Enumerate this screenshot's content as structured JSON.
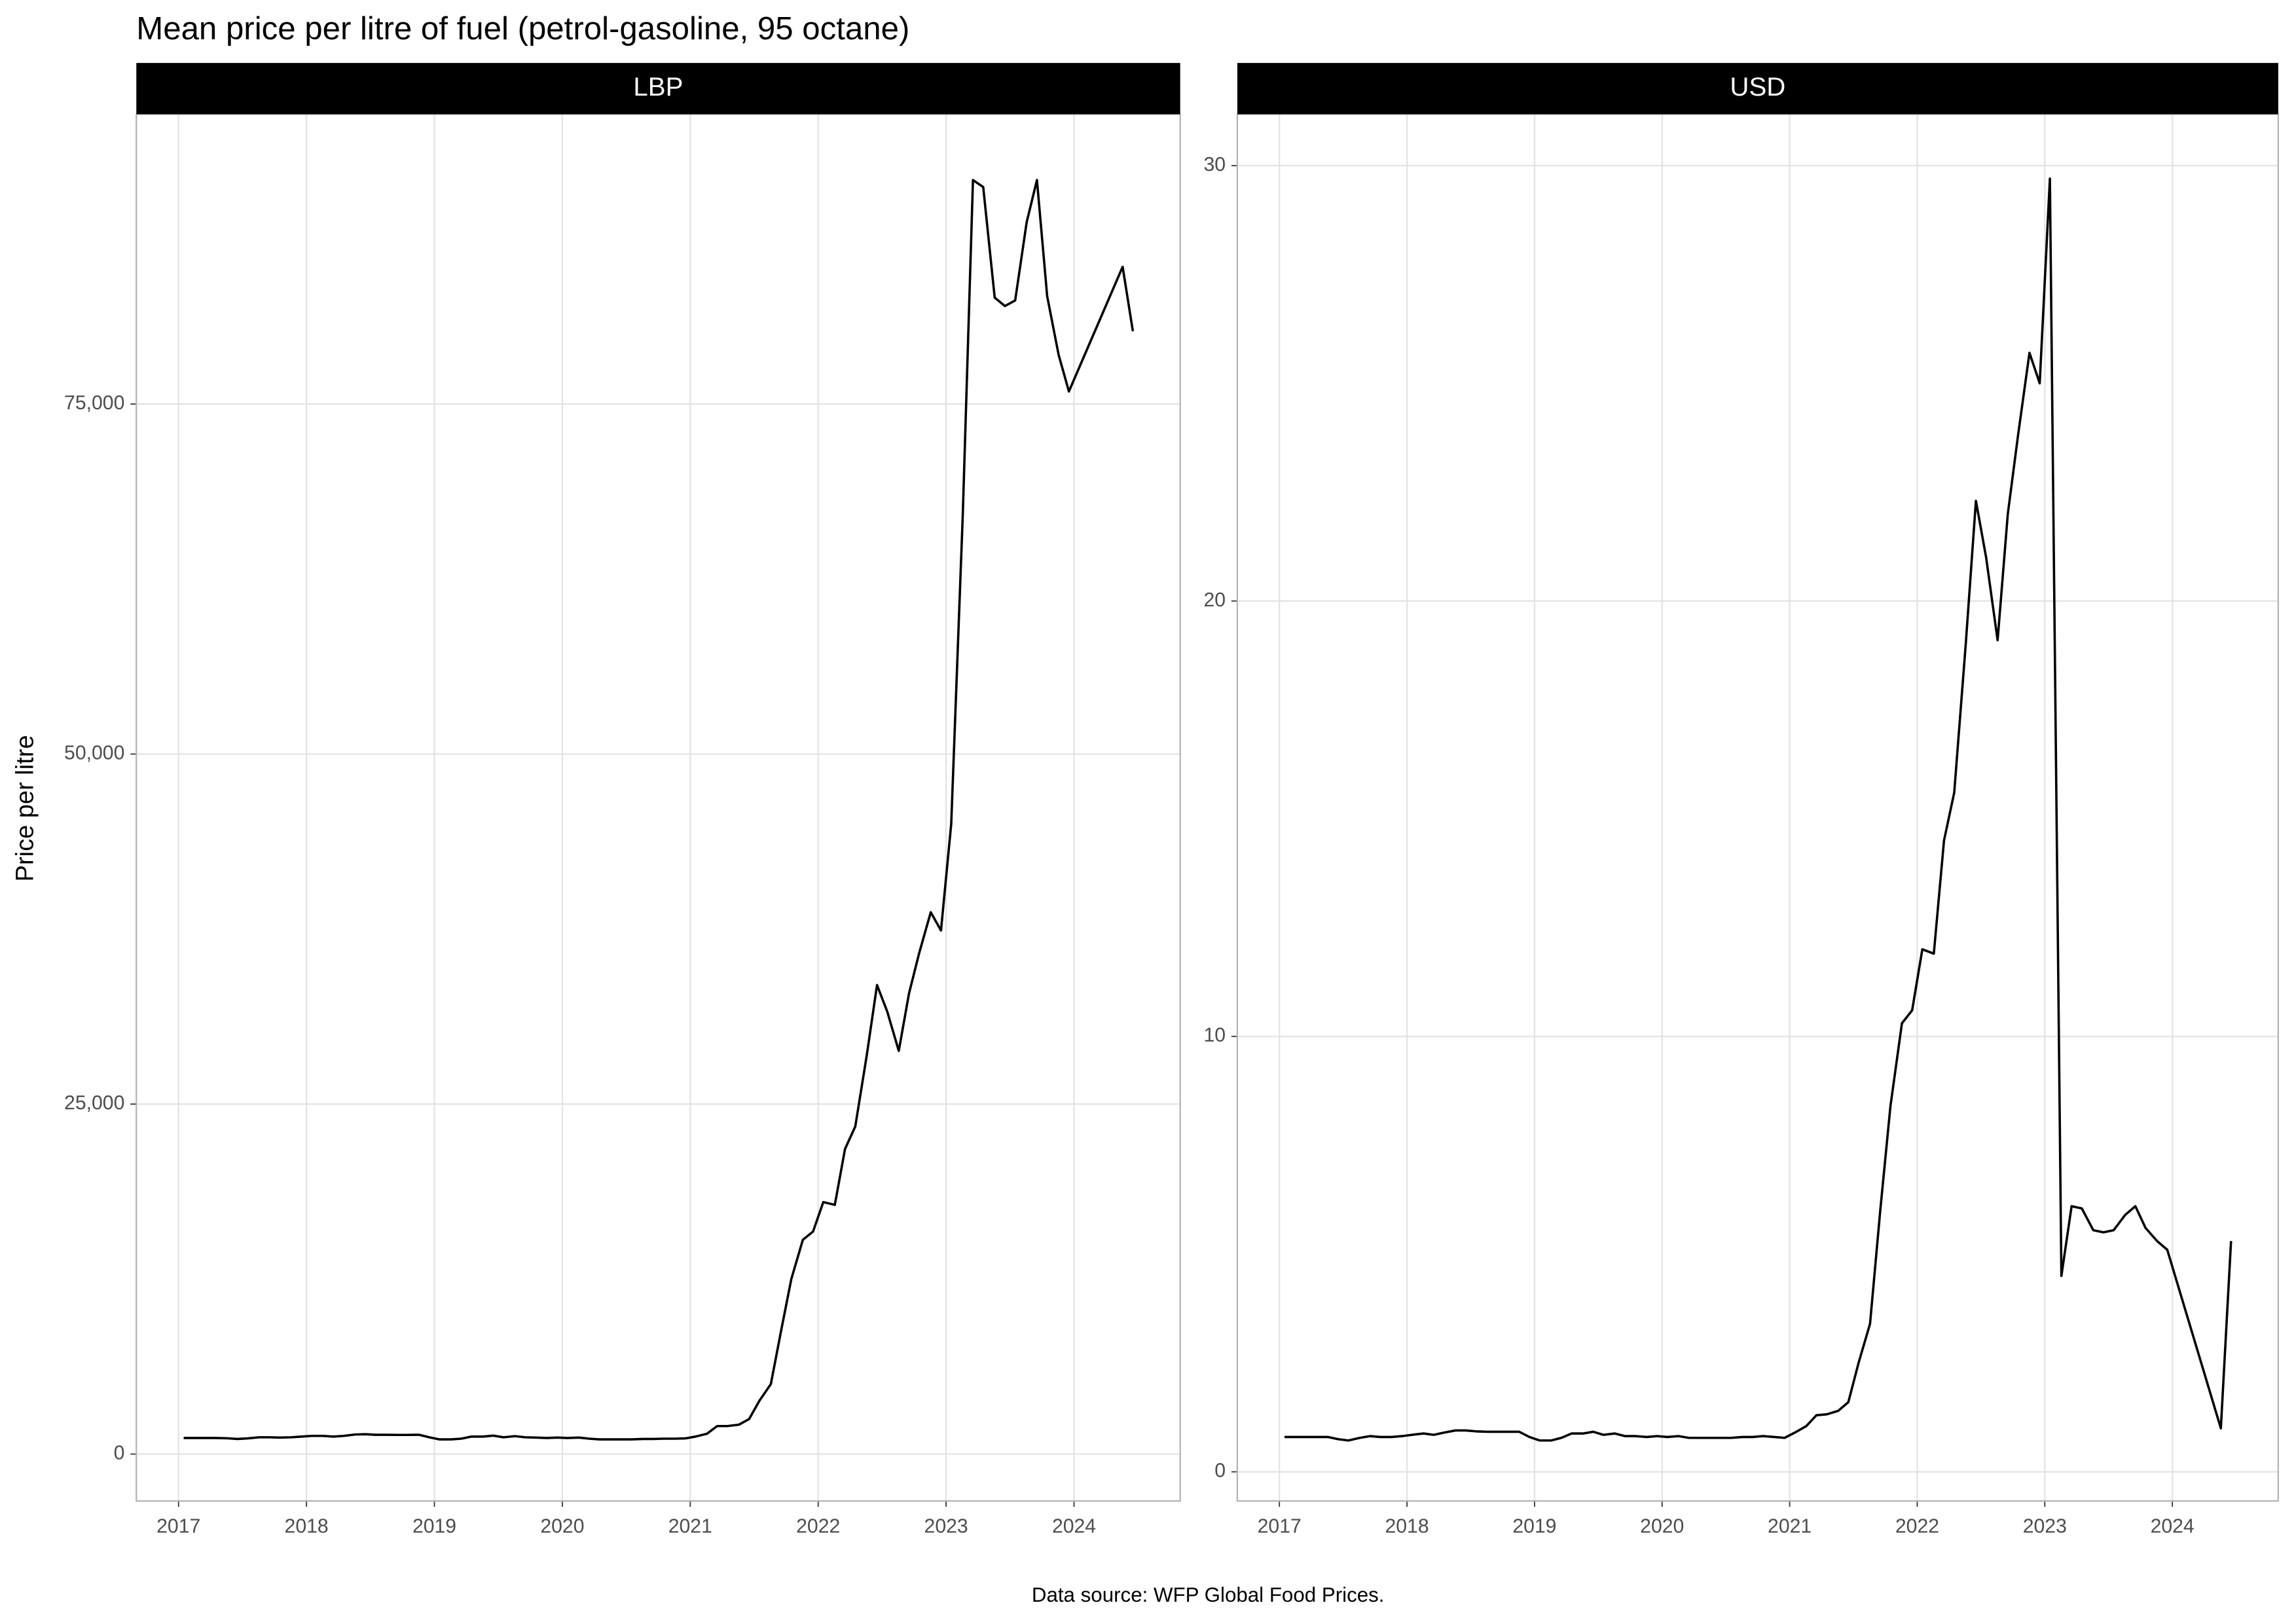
{
  "title": "Mean price per litre of fuel (petrol-gasoline, 95 octane)",
  "ylabel": "Price per litre",
  "caption": "Data source: WFP Global Food Prices.",
  "chart_data": [
    {
      "type": "line",
      "title": "LBP",
      "color": "#000000",
      "grid": true,
      "xlim": [
        2016.67,
        2024.83
      ],
      "xticks": [
        2017,
        2018,
        2019,
        2020,
        2021,
        2022,
        2023,
        2024
      ],
      "ylim": [
        -3350,
        95700
      ],
      "yticks": [
        0,
        {
          "value": 25000,
          "label": "25,000"
        },
        {
          "value": 50000,
          "label": "50,000"
        },
        {
          "value": 75000,
          "label": "75,000"
        }
      ],
      "x": [
        2017.04,
        2017.13,
        2017.21,
        2017.29,
        2017.38,
        2017.46,
        2017.54,
        2017.63,
        2017.71,
        2017.79,
        2017.88,
        2017.96,
        2018.04,
        2018.13,
        2018.21,
        2018.29,
        2018.38,
        2018.46,
        2018.54,
        2018.63,
        2018.71,
        2018.79,
        2018.88,
        2018.96,
        2019.04,
        2019.13,
        2019.21,
        2019.29,
        2019.38,
        2019.46,
        2019.54,
        2019.63,
        2019.71,
        2019.79,
        2019.88,
        2019.96,
        2020.04,
        2020.13,
        2020.21,
        2020.29,
        2020.38,
        2020.46,
        2020.54,
        2020.63,
        2020.71,
        2020.79,
        2020.88,
        2020.96,
        2021.04,
        2021.13,
        2021.21,
        2021.29,
        2021.38,
        2021.46,
        2021.54,
        2021.63,
        2021.71,
        2021.79,
        2021.88,
        2021.96,
        2022.04,
        2022.13,
        2022.21,
        2022.29,
        2022.38,
        2022.46,
        2022.54,
        2022.63,
        2022.71,
        2022.79,
        2022.88,
        2022.96,
        2023.04,
        2023.13,
        2023.21,
        2023.29,
        2023.38,
        2023.46,
        2023.54,
        2023.63,
        2023.71,
        2023.79,
        2023.88,
        2023.96,
        2024.38,
        2024.46
      ],
      "values": [
        1150,
        1150,
        1150,
        1150,
        1130,
        1080,
        1120,
        1200,
        1200,
        1180,
        1200,
        1250,
        1300,
        1300,
        1250,
        1300,
        1400,
        1420,
        1380,
        1380,
        1370,
        1370,
        1380,
        1200,
        1050,
        1050,
        1100,
        1250,
        1250,
        1320,
        1200,
        1280,
        1200,
        1180,
        1150,
        1180,
        1150,
        1180,
        1100,
        1050,
        1050,
        1050,
        1050,
        1080,
        1080,
        1100,
        1100,
        1120,
        1250,
        1450,
        2000,
        2000,
        2100,
        2500,
        3800,
        5000,
        8800,
        12500,
        15300,
        15900,
        18000,
        17800,
        21800,
        23400,
        28500,
        33500,
        31600,
        28800,
        32900,
        35800,
        38700,
        37400,
        45000,
        67000,
        91000,
        90500,
        82600,
        82000,
        82400,
        88000,
        91000,
        82700,
        78500,
        75900,
        84800,
        80200
      ]
    },
    {
      "type": "line",
      "title": "USD",
      "color": "#000000",
      "grid": true,
      "xlim": [
        2016.67,
        2024.83
      ],
      "xticks": [
        2017,
        2018,
        2019,
        2020,
        2021,
        2022,
        2023,
        2024
      ],
      "ylim": [
        -0.67,
        31.18
      ],
      "yticks": [
        0,
        10,
        20,
        30
      ],
      "x": [
        2017.04,
        2017.13,
        2017.21,
        2017.29,
        2017.38,
        2017.46,
        2017.54,
        2017.63,
        2017.71,
        2017.79,
        2017.88,
        2017.96,
        2018.04,
        2018.13,
        2018.21,
        2018.29,
        2018.38,
        2018.46,
        2018.54,
        2018.63,
        2018.71,
        2018.79,
        2018.88,
        2018.96,
        2019.04,
        2019.13,
        2019.21,
        2019.29,
        2019.38,
        2019.46,
        2019.54,
        2019.63,
        2019.71,
        2019.79,
        2019.88,
        2019.96,
        2020.04,
        2020.13,
        2020.21,
        2020.29,
        2020.38,
        2020.46,
        2020.54,
        2020.63,
        2020.71,
        2020.79,
        2020.88,
        2020.96,
        2021.04,
        2021.13,
        2021.21,
        2021.29,
        2021.38,
        2021.46,
        2021.54,
        2021.63,
        2021.71,
        2021.79,
        2021.88,
        2021.96,
        2022.04,
        2022.13,
        2022.21,
        2022.29,
        2022.38,
        2022.46,
        2022.54,
        2022.63,
        2022.71,
        2022.79,
        2022.88,
        2022.96,
        2023.04,
        2023.13,
        2023.21,
        2023.29,
        2023.38,
        2023.46,
        2023.54,
        2023.63,
        2023.71,
        2023.79,
        2023.88,
        2023.96,
        2024.38,
        2024.46
      ],
      "values": [
        0.8,
        0.8,
        0.8,
        0.8,
        0.8,
        0.75,
        0.72,
        0.78,
        0.82,
        0.8,
        0.8,
        0.82,
        0.85,
        0.88,
        0.85,
        0.9,
        0.95,
        0.95,
        0.93,
        0.92,
        0.92,
        0.92,
        0.92,
        0.8,
        0.72,
        0.72,
        0.78,
        0.88,
        0.88,
        0.92,
        0.85,
        0.88,
        0.82,
        0.82,
        0.8,
        0.82,
        0.8,
        0.82,
        0.78,
        0.78,
        0.78,
        0.78,
        0.78,
        0.8,
        0.8,
        0.82,
        0.8,
        0.78,
        0.9,
        1.05,
        1.3,
        1.32,
        1.4,
        1.6,
        2.5,
        3.4,
        6,
        8.4,
        10.3,
        10.6,
        12.0,
        11.9,
        14.5,
        15.6,
        19.0,
        22.3,
        21.0,
        19.1,
        22.0,
        23.8,
        25.7,
        25.0,
        29.7,
        4.5,
        6.1,
        6.05,
        5.55,
        5.5,
        5.55,
        5.9,
        6.1,
        5.6,
        5.3,
        5.1,
        1.0,
        5.3
      ]
    }
  ]
}
